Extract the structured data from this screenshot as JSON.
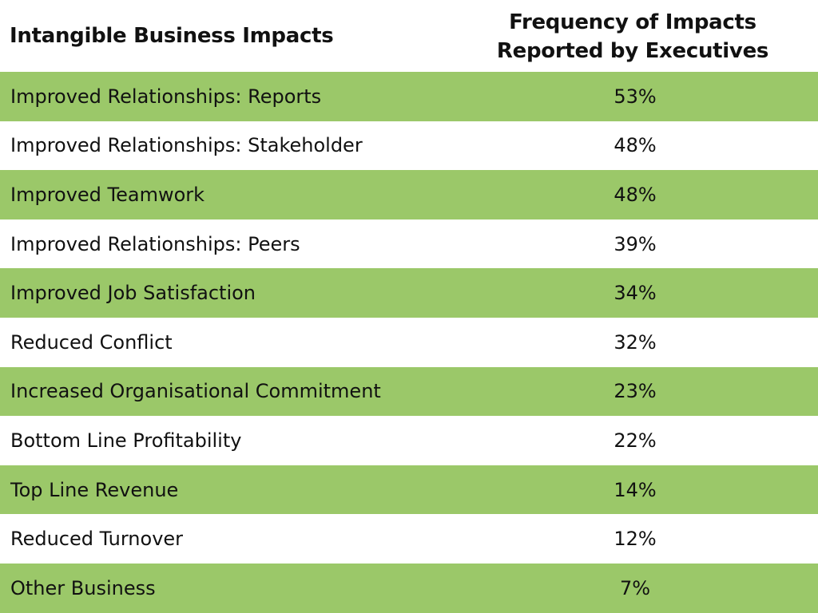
{
  "chart_data": {
    "type": "table",
    "columns": [
      "Intangible Business Impacts",
      "Frequency of Impacts Reported by Executives"
    ],
    "header_right_lines": [
      "Frequency of Impacts",
      "Reported by Executives"
    ],
    "rows": [
      {
        "label": "Improved Relationships: Reports",
        "value": "53%"
      },
      {
        "label": "Improved Relationships: Stakeholder",
        "value": "48%"
      },
      {
        "label": "Improved Teamwork",
        "value": "48%"
      },
      {
        "label": "Improved Relationships: Peers",
        "value": "39%"
      },
      {
        "label": "Improved Job Satisfaction",
        "value": "34%"
      },
      {
        "label": "Reduced Conflict",
        "value": "32%"
      },
      {
        "label": "Increased Organisational Commitment",
        "value": "23%"
      },
      {
        "label": "Bottom Line Profitability",
        "value": "22%"
      },
      {
        "label": "Top Line Revenue",
        "value": "14%"
      },
      {
        "label": "Reduced Turnover",
        "value": "12%"
      },
      {
        "label": "Other Business",
        "value": "7%"
      }
    ]
  },
  "colors": {
    "row_green": "#9bc869",
    "row_white": "#ffffff",
    "text": "#111111"
  }
}
